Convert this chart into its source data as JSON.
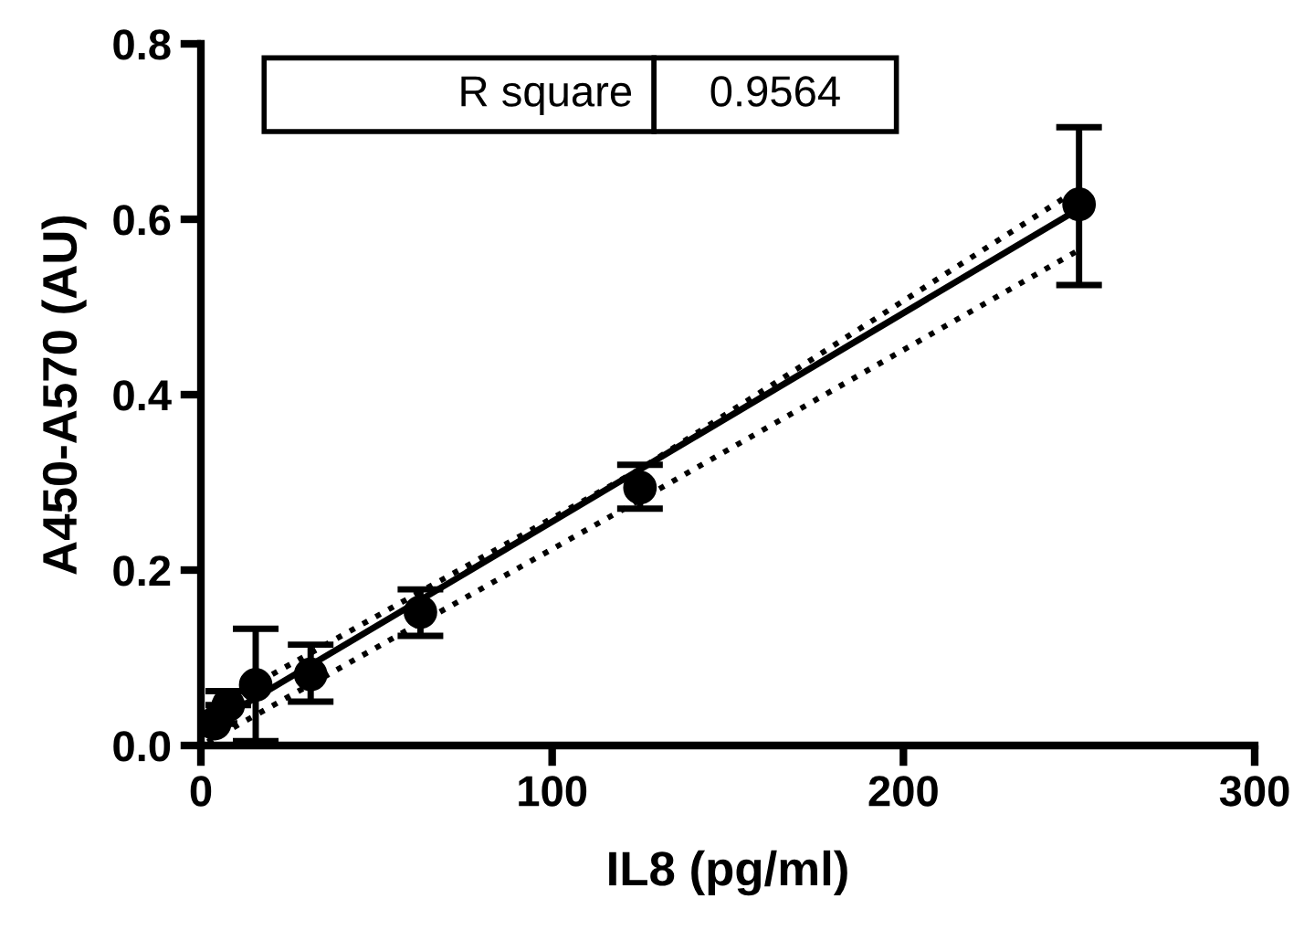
{
  "chart_data": {
    "type": "scatter",
    "xlabel": "IL8 (pg/ml)",
    "ylabel": "A450-A570 (AU)",
    "xlim": [
      0,
      300
    ],
    "xticks": [
      0,
      100,
      200,
      300
    ],
    "ylim": [
      0,
      0.8
    ],
    "yticks": [
      {
        "value": 0,
        "label": "0.0"
      },
      0.2,
      0.4,
      0.6,
      0.8
    ],
    "grid": false,
    "annotations": [
      "R square",
      "0.9564"
    ],
    "series": [
      {
        "type": "scatter",
        "color": "#000000",
        "marker": "circle",
        "x": [
          3.9,
          7.8,
          15.6,
          31.25,
          62.5,
          125,
          250
        ],
        "values": [
          0.025,
          0.046,
          0.069,
          0.081,
          0.152,
          0.294,
          0.617
        ],
        "errors": [
          null,
          [
            0.046,
            0.062
          ],
          [
            0.005,
            0.133
          ],
          [
            0.05,
            0.115
          ],
          [
            0.125,
            0.178
          ],
          [
            0.27,
            0.32
          ],
          [
            0.525,
            0.705
          ]
        ]
      },
      {
        "type": "line",
        "color": "#000000",
        "line_style": "solid",
        "x": [
          1.95,
          250
        ],
        "values": [
          0.022,
          0.612
        ]
      },
      {
        "type": "line",
        "color": "#000000",
        "line_style": "dotted",
        "x": [
          1.95,
          125,
          250
        ],
        "values": [
          0.04,
          0.315,
          0.635
        ]
      },
      {
        "type": "line",
        "color": "#000000",
        "line_style": "dotted",
        "x": [
          1.95,
          125,
          250
        ],
        "values": [
          0.004,
          0.28,
          0.565
        ]
      }
    ]
  }
}
